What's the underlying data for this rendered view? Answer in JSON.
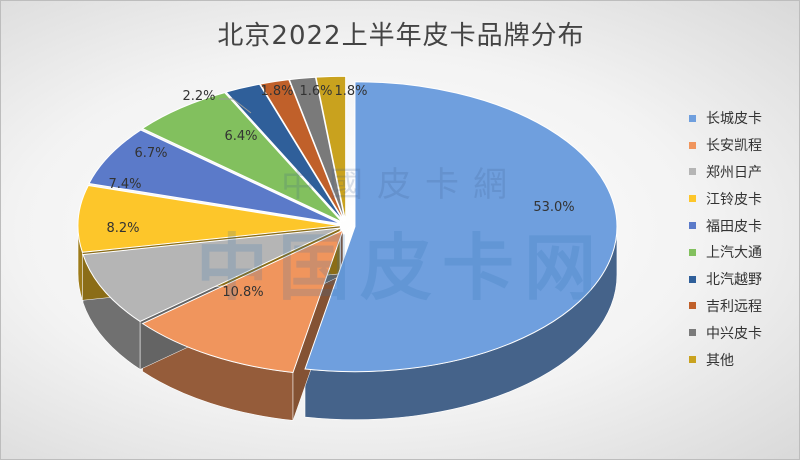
{
  "chart_data": {
    "type": "pie",
    "title": "北京2022上半年皮卡品牌分布",
    "legend_position": "right",
    "categories": [
      "长城皮卡",
      "长安凯程",
      "郑州日产",
      "江铃皮卡",
      "福田皮卡",
      "上汽大通",
      "北汽越野",
      "吉利远程",
      "中兴皮卡",
      "其他"
    ],
    "values": [
      53.0,
      10.8,
      8.2,
      7.4,
      6.7,
      6.4,
      2.2,
      1.8,
      1.6,
      1.8
    ],
    "value_labels": [
      "53.0%",
      "10.8%",
      "8.2%",
      "7.4%",
      "6.7%",
      "6.4%",
      "2.2%",
      "1.8%",
      "1.6%",
      "1.8%"
    ],
    "colors": [
      "#6f9fde",
      "#f0955d",
      "#b5b5b5",
      "#fdc62a",
      "#5b7ac9",
      "#82c05e",
      "#2f5f9a",
      "#c0602a",
      "#7a7a7a",
      "#c9a21e"
    ],
    "style": "3d-exploded"
  },
  "watermark": {
    "line1": "中國皮卡網",
    "line2": "中国皮卡网"
  }
}
